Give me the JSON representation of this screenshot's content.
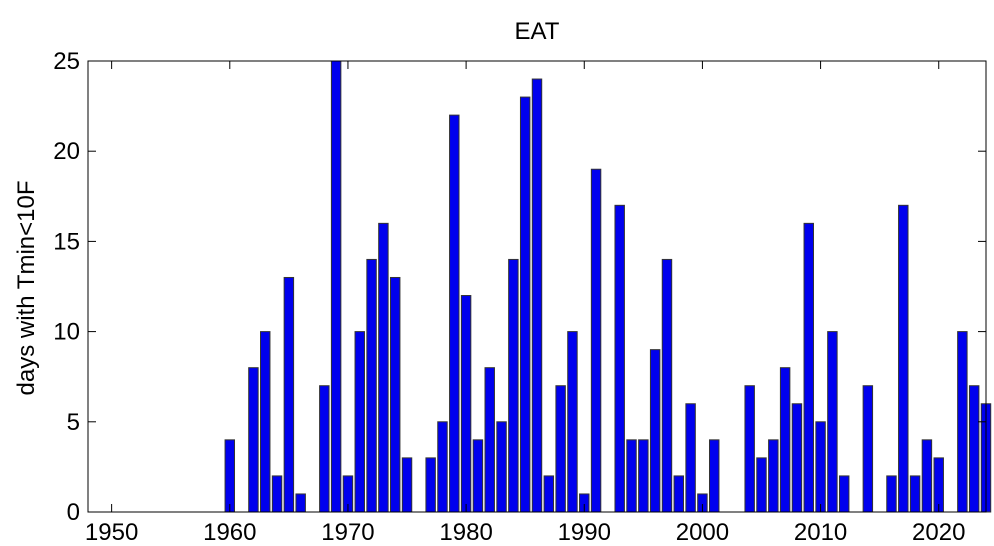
{
  "chart_data": {
    "type": "bar",
    "title": "EAT",
    "xlabel": "",
    "ylabel": "days with  Tmin<10F",
    "xlim": [
      1948,
      2024
    ],
    "ylim": [
      0,
      25
    ],
    "grid": false,
    "bar_color": "#0000ee",
    "bar_edge_color": "#333333",
    "xticks": [
      1950,
      1960,
      1970,
      1980,
      1990,
      2000,
      2010,
      2020
    ],
    "yticks": [
      0,
      5,
      10,
      15,
      20,
      25
    ],
    "x": [
      1948,
      1949,
      1950,
      1951,
      1952,
      1953,
      1954,
      1955,
      1956,
      1957,
      1958,
      1959,
      1960,
      1961,
      1962,
      1963,
      1964,
      1965,
      1966,
      1967,
      1968,
      1969,
      1970,
      1971,
      1972,
      1973,
      1974,
      1975,
      1976,
      1977,
      1978,
      1979,
      1980,
      1981,
      1982,
      1983,
      1984,
      1985,
      1986,
      1987,
      1988,
      1989,
      1990,
      1991,
      1992,
      1993,
      1994,
      1995,
      1996,
      1997,
      1998,
      1999,
      2000,
      2001,
      2002,
      2003,
      2004,
      2005,
      2006,
      2007,
      2008,
      2009,
      2010,
      2011,
      2012,
      2013,
      2014,
      2015,
      2016,
      2017,
      2018,
      2019,
      2020,
      2021,
      2022,
      2023,
      2024
    ],
    "values": [
      0,
      0,
      0,
      0,
      0,
      0,
      0,
      0,
      0,
      0,
      0,
      0,
      4,
      0,
      8,
      10,
      2,
      13,
      1,
      0,
      7,
      25,
      2,
      10,
      14,
      16,
      13,
      3,
      0,
      3,
      5,
      22,
      12,
      4,
      8,
      5,
      14,
      23,
      24,
      2,
      7,
      10,
      1,
      19,
      0,
      17,
      4,
      4,
      9,
      14,
      2,
      6,
      1,
      4,
      0,
      0,
      7,
      3,
      4,
      8,
      6,
      16,
      5,
      10,
      2,
      0,
      7,
      0,
      2,
      17,
      2,
      4,
      3,
      0,
      10,
      7,
      6
    ]
  }
}
